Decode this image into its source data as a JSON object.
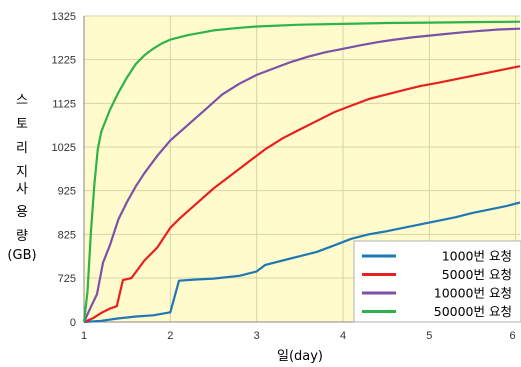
{
  "chart_data": {
    "type": "line",
    "title": "",
    "xlabel": "일(day)",
    "ylabel": "스토리지 사용량 (GB)",
    "ylabel_lines": [
      "스",
      "토",
      "리",
      "지",
      "",
      "사",
      "용",
      "량",
      "(GB)"
    ],
    "xlim": [
      1,
      6.05
    ],
    "x_ticks": [
      1,
      2,
      3,
      4,
      5,
      6
    ],
    "y_ticks": [
      0,
      725,
      825,
      925,
      1025,
      1125,
      1225,
      1325
    ],
    "y_axis_note": "broken axis: gap between 0 and 725",
    "grid": true,
    "legend_position": "bottom-right",
    "background_color": "#FFFBCC",
    "series": [
      {
        "name": "1000번 요청",
        "color": "#1F77B4",
        "points": [
          [
            1.0,
            0
          ],
          [
            1.2,
            20
          ],
          [
            1.4,
            60
          ],
          [
            1.6,
            90
          ],
          [
            1.8,
            110
          ],
          [
            2.0,
            160
          ],
          [
            2.1,
            680
          ],
          [
            2.3,
            700
          ],
          [
            2.5,
            715
          ],
          [
            2.8,
            730
          ],
          [
            3.0,
            740
          ],
          [
            3.1,
            755
          ],
          [
            3.3,
            765
          ],
          [
            3.5,
            775
          ],
          [
            3.7,
            785
          ],
          [
            3.9,
            800
          ],
          [
            4.1,
            815
          ],
          [
            4.3,
            825
          ],
          [
            4.5,
            832
          ],
          [
            4.7,
            840
          ],
          [
            4.9,
            848
          ],
          [
            5.1,
            856
          ],
          [
            5.3,
            864
          ],
          [
            5.5,
            874
          ],
          [
            5.7,
            882
          ],
          [
            5.9,
            890
          ],
          [
            6.05,
            898
          ]
        ]
      },
      {
        "name": "5000번 요청",
        "color": "#E8201F",
        "points": [
          [
            1.0,
            0
          ],
          [
            1.1,
            60
          ],
          [
            1.2,
            150
          ],
          [
            1.3,
            220
          ],
          [
            1.38,
            260
          ],
          [
            1.45,
            690
          ],
          [
            1.55,
            725
          ],
          [
            1.7,
            765
          ],
          [
            1.85,
            795
          ],
          [
            2.0,
            840
          ],
          [
            2.1,
            860
          ],
          [
            2.3,
            895
          ],
          [
            2.5,
            930
          ],
          [
            2.7,
            960
          ],
          [
            2.9,
            990
          ],
          [
            3.1,
            1020
          ],
          [
            3.3,
            1045
          ],
          [
            3.5,
            1065
          ],
          [
            3.7,
            1085
          ],
          [
            3.9,
            1105
          ],
          [
            4.1,
            1120
          ],
          [
            4.3,
            1135
          ],
          [
            4.5,
            1145
          ],
          [
            4.7,
            1155
          ],
          [
            4.9,
            1165
          ],
          [
            5.1,
            1172
          ],
          [
            5.3,
            1180
          ],
          [
            5.5,
            1188
          ],
          [
            5.7,
            1196
          ],
          [
            5.9,
            1204
          ],
          [
            6.05,
            1210
          ]
        ]
      },
      {
        "name": "10000번 요청",
        "color": "#7B52A8",
        "points": [
          [
            1.0,
            0
          ],
          [
            1.08,
            250
          ],
          [
            1.15,
            460
          ],
          [
            1.22,
            760
          ],
          [
            1.3,
            800
          ],
          [
            1.4,
            860
          ],
          [
            1.5,
            900
          ],
          [
            1.6,
            935
          ],
          [
            1.7,
            965
          ],
          [
            1.85,
            1005
          ],
          [
            2.0,
            1040
          ],
          [
            2.2,
            1075
          ],
          [
            2.4,
            1110
          ],
          [
            2.6,
            1145
          ],
          [
            2.8,
            1170
          ],
          [
            3.0,
            1190
          ],
          [
            3.2,
            1205
          ],
          [
            3.4,
            1220
          ],
          [
            3.6,
            1232
          ],
          [
            3.8,
            1242
          ],
          [
            4.0,
            1250
          ],
          [
            4.2,
            1258
          ],
          [
            4.4,
            1265
          ],
          [
            4.6,
            1271
          ],
          [
            4.8,
            1276
          ],
          [
            5.0,
            1280
          ],
          [
            5.2,
            1284
          ],
          [
            5.4,
            1288
          ],
          [
            5.6,
            1291
          ],
          [
            5.8,
            1294
          ],
          [
            6.05,
            1296
          ]
        ]
      },
      {
        "name": "50000번 요청",
        "color": "#2DB34A",
        "points": [
          [
            1.0,
            0
          ],
          [
            1.04,
            500
          ],
          [
            1.08,
            830
          ],
          [
            1.12,
            940
          ],
          [
            1.16,
            1020
          ],
          [
            1.2,
            1060
          ],
          [
            1.3,
            1110
          ],
          [
            1.4,
            1150
          ],
          [
            1.5,
            1185
          ],
          [
            1.6,
            1215
          ],
          [
            1.7,
            1235
          ],
          [
            1.8,
            1250
          ],
          [
            1.9,
            1262
          ],
          [
            2.0,
            1271
          ],
          [
            2.2,
            1281
          ],
          [
            2.5,
            1292
          ],
          [
            2.8,
            1298
          ],
          [
            3.0,
            1301
          ],
          [
            3.5,
            1305
          ],
          [
            4.0,
            1307
          ],
          [
            4.5,
            1309
          ],
          [
            5.0,
            1310
          ],
          [
            5.5,
            1311
          ],
          [
            6.05,
            1312
          ]
        ]
      }
    ]
  }
}
